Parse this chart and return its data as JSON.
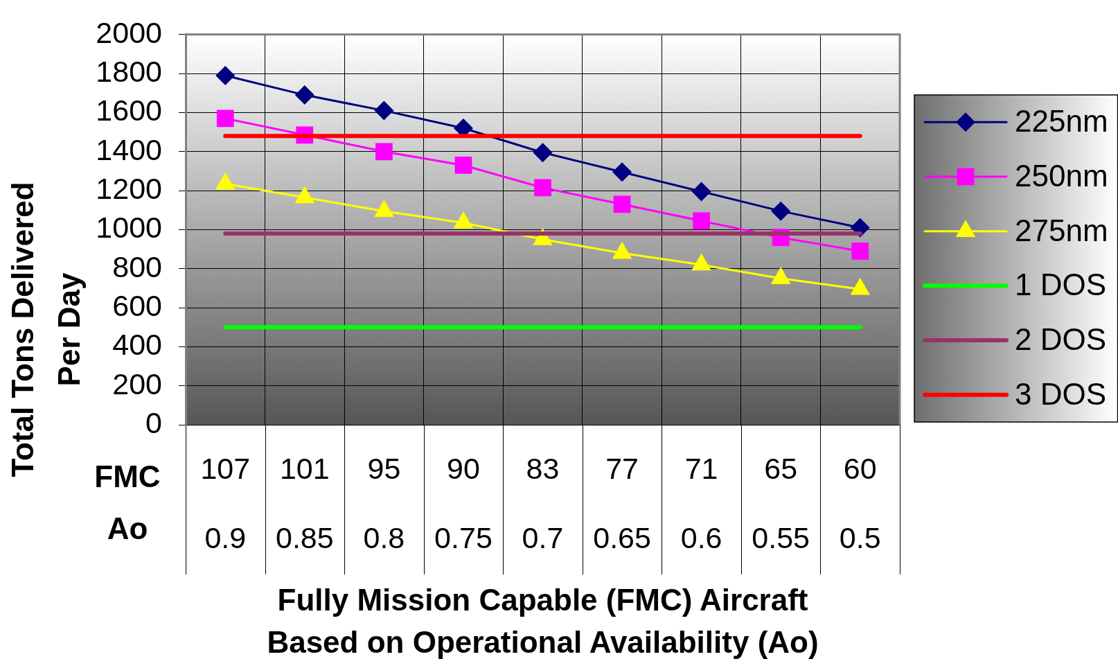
{
  "chart_data": {
    "type": "line",
    "categories": [
      "107\n0.9",
      "101\n0.85",
      "95\n0.8",
      "90\n0.75",
      "83\n0.7",
      "77\n0.65",
      "71\n0.6",
      "65\n0.55",
      "60\n0.5"
    ],
    "xlabel": "Fully Mission Capable (FMC) Aircraft Based on Operational Availability (Ao)",
    "ylabel": "Total Tons Delivered Per Day",
    "annotations": [
      "FMC",
      "Ao"
    ],
    "series": [
      {
        "name": "225nm",
        "color": "#000080",
        "marker": "diamond",
        "values": [
          1790,
          1690,
          1610,
          1520,
          1395,
          1295,
          1195,
          1095,
          1010
        ]
      },
      {
        "name": "250nm",
        "color": "#ff00ff",
        "marker": "square",
        "values": [
          1570,
          1485,
          1400,
          1330,
          1215,
          1130,
          1045,
          960,
          890
        ]
      },
      {
        "name": "275nm",
        "color": "#ffff00",
        "marker": "triangle",
        "values": [
          1235,
          1165,
          1095,
          1035,
          950,
          880,
          820,
          750,
          695
        ]
      },
      {
        "name": "1 DOS",
        "color": "#00ff00",
        "marker": "none",
        "values": [
          500,
          500,
          500,
          500,
          500,
          500,
          500,
          500,
          500
        ]
      },
      {
        "name": "2 DOS",
        "color": "#993366",
        "marker": "none",
        "values": [
          980,
          980,
          980,
          980,
          980,
          980,
          980,
          980,
          980
        ]
      },
      {
        "name": "3 DOS",
        "color": "#ff0000",
        "marker": "none",
        "values": [
          1480,
          1480,
          1480,
          1480,
          1480,
          1480,
          1480,
          1480,
          1480
        ]
      }
    ],
    "ylim": [
      0,
      2000
    ],
    "yticks": [
      0,
      200,
      400,
      600,
      800,
      1000,
      1200,
      1400,
      1600,
      1800,
      2000
    ],
    "grid": true,
    "legend": "right"
  }
}
